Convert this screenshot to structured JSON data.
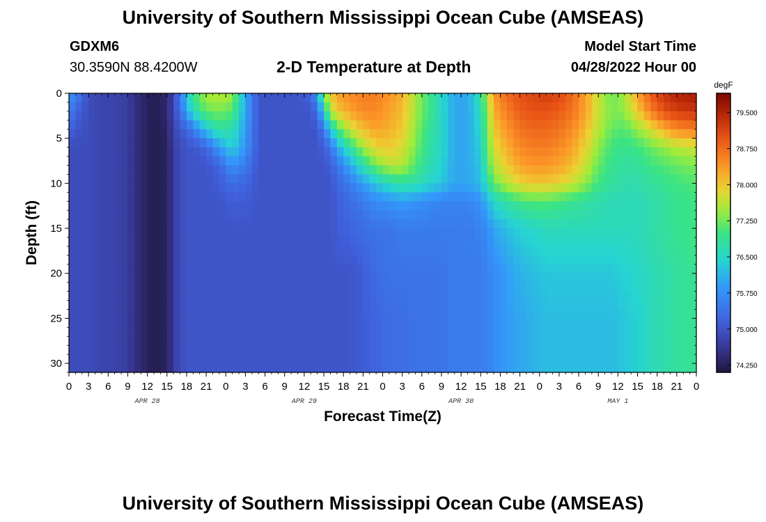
{
  "page_title": "University of Southern Mississippi Ocean Cube (AMSEAS)",
  "footer_title": "University of Southern Mississippi Ocean Cube (AMSEAS)",
  "station": {
    "id": "GDXM6",
    "coords": "30.3590N  88.4200W"
  },
  "subtitle": "2-D Temperature at Depth",
  "model_start": {
    "label": "Model Start Time",
    "value": "04/28/2022 Hour 00"
  },
  "chart_data": {
    "type": "heatmap",
    "title": "2-D Temperature at Depth",
    "xlabel": "Forecast Time(Z)",
    "ylabel": "Depth (ft)",
    "x_unit": "hours from model start",
    "xlim": [
      0,
      96
    ],
    "ylim": [
      0,
      31
    ],
    "x_ticks": [
      0,
      3,
      6,
      9,
      12,
      15,
      18,
      21,
      24,
      27,
      30,
      33,
      36,
      39,
      42,
      45,
      48,
      51,
      54,
      57,
      60,
      63,
      66,
      69,
      72,
      75,
      78,
      81,
      84,
      87,
      90,
      93,
      96
    ],
    "x_tick_labels": [
      "0",
      "3",
      "6",
      "9",
      "12",
      "15",
      "18",
      "21",
      "0",
      "3",
      "6",
      "9",
      "12",
      "15",
      "18",
      "21",
      "0",
      "3",
      "6",
      "9",
      "12",
      "15",
      "18",
      "21",
      "0",
      "3",
      "6",
      "9",
      "12",
      "15",
      "18",
      "21",
      "0"
    ],
    "date_labels": [
      {
        "text": "APR 28",
        "hour": 12
      },
      {
        "text": "APR 29",
        "hour": 36
      },
      {
        "text": "APR 30",
        "hour": 60
      },
      {
        "text": "MAY 1",
        "hour": 84
      }
    ],
    "y_ticks": [
      0,
      5,
      10,
      15,
      20,
      25,
      30
    ],
    "colorbar": {
      "unit": "degF",
      "min": 74.1,
      "max": 79.9,
      "ticks": [
        "74.250",
        "75.000",
        "75.750",
        "76.500",
        "77.250",
        "78.000",
        "78.750",
        "79.500"
      ],
      "tick_values": [
        74.25,
        75.0,
        75.75,
        76.5,
        77.25,
        78.0,
        78.75,
        79.5
      ]
    },
    "depths_ft": [
      0,
      2,
      4,
      6,
      8,
      10,
      12,
      15,
      20,
      25,
      31
    ],
    "time_hours": [
      0,
      1,
      3,
      5,
      7,
      9,
      11,
      12,
      13,
      15,
      16,
      17,
      18,
      19,
      21,
      23,
      25,
      27,
      29,
      31,
      33,
      35,
      37,
      38,
      39,
      40,
      41,
      43,
      45,
      47,
      49,
      51,
      53,
      55,
      57,
      59,
      61,
      63,
      64,
      65,
      67,
      69,
      71,
      73,
      75,
      77,
      79,
      81,
      83,
      85,
      87,
      89,
      91,
      93,
      96
    ],
    "temperature_degF": [
      [
        75.9,
        75.6,
        74.9,
        74.8,
        74.8,
        74.7,
        74.4,
        74.3,
        74.2,
        74.4,
        74.8,
        75.5,
        76.3,
        77.0,
        77.5,
        77.6,
        77.5,
        76.0,
        75.0,
        75.0,
        75.0,
        75.0,
        75.2,
        76.0,
        77.3,
        78.0,
        78.3,
        78.5,
        78.6,
        78.6,
        78.4,
        78.2,
        77.5,
        77.0,
        76.5,
        76.0,
        76.0,
        76.8,
        77.6,
        78.4,
        78.8,
        79.0,
        79.1,
        79.2,
        79.1,
        78.8,
        78.3,
        77.7,
        77.2,
        77.5,
        78.3,
        78.9,
        79.3,
        79.5,
        79.6
      ],
      [
        75.6,
        75.2,
        74.9,
        74.8,
        74.8,
        74.7,
        74.4,
        74.3,
        74.2,
        74.4,
        74.9,
        75.3,
        76.0,
        76.6,
        77.2,
        77.3,
        77.1,
        76.0,
        75.0,
        75.0,
        75.0,
        75.0,
        75.0,
        75.3,
        76.5,
        77.5,
        78.0,
        78.3,
        78.5,
        78.5,
        78.3,
        78.1,
        77.5,
        77.0,
        76.5,
        76.0,
        76.0,
        76.6,
        77.4,
        78.2,
        78.6,
        78.9,
        79.0,
        79.0,
        78.9,
        78.7,
        78.3,
        77.7,
        77.3,
        77.4,
        78.0,
        78.6,
        79.0,
        79.2,
        79.3
      ],
      [
        75.2,
        75.0,
        74.9,
        74.8,
        74.8,
        74.7,
        74.4,
        74.3,
        74.2,
        74.3,
        74.8,
        75.0,
        75.2,
        75.5,
        76.3,
        76.8,
        76.7,
        75.9,
        75.0,
        75.0,
        75.0,
        75.0,
        75.0,
        75.0,
        75.5,
        76.3,
        77.0,
        77.7,
        78.1,
        78.3,
        78.2,
        78.0,
        77.4,
        76.9,
        76.5,
        76.0,
        76.0,
        76.5,
        77.3,
        78.0,
        78.4,
        78.7,
        78.8,
        78.8,
        78.7,
        78.5,
        78.1,
        77.6,
        77.2,
        77.1,
        77.4,
        77.8,
        78.2,
        78.5,
        78.6
      ],
      [
        74.9,
        74.9,
        74.9,
        74.8,
        74.8,
        74.7,
        74.4,
        74.3,
        74.2,
        74.3,
        74.7,
        74.9,
        75.0,
        75.0,
        75.2,
        75.9,
        76.4,
        75.8,
        75.0,
        75.0,
        75.0,
        75.0,
        75.0,
        75.0,
        75.1,
        75.4,
        76.0,
        76.8,
        77.5,
        77.9,
        78.0,
        77.8,
        77.3,
        76.8,
        76.5,
        76.0,
        76.0,
        76.4,
        77.1,
        77.8,
        78.2,
        78.5,
        78.6,
        78.6,
        78.5,
        78.3,
        77.9,
        77.4,
        77.0,
        76.9,
        77.0,
        77.2,
        77.4,
        77.6,
        77.7
      ],
      [
        74.9,
        74.9,
        74.9,
        74.8,
        74.8,
        74.7,
        74.4,
        74.3,
        74.2,
        74.3,
        74.7,
        74.9,
        75.0,
        75.0,
        75.0,
        75.2,
        75.8,
        75.5,
        75.0,
        75.0,
        75.0,
        75.0,
        75.0,
        75.0,
        75.0,
        75.1,
        75.4,
        76.0,
        76.7,
        77.3,
        77.6,
        77.6,
        77.1,
        76.7,
        76.4,
        76.0,
        76.0,
        76.3,
        77.0,
        77.6,
        78.0,
        78.3,
        78.4,
        78.4,
        78.3,
        78.1,
        77.7,
        77.2,
        76.9,
        76.8,
        76.8,
        77.0,
        77.1,
        77.2,
        77.3
      ],
      [
        74.9,
        74.9,
        74.9,
        74.8,
        74.8,
        74.7,
        74.4,
        74.3,
        74.2,
        74.3,
        74.7,
        74.9,
        75.0,
        75.0,
        75.0,
        75.1,
        75.3,
        75.2,
        75.0,
        75.0,
        75.0,
        75.0,
        75.0,
        75.0,
        75.0,
        75.0,
        75.2,
        75.5,
        75.9,
        76.3,
        76.6,
        76.8,
        76.7,
        76.5,
        76.3,
        76.0,
        76.0,
        76.2,
        76.7,
        77.2,
        77.6,
        77.9,
        78.0,
        78.0,
        77.9,
        77.7,
        77.4,
        77.0,
        76.8,
        76.7,
        76.7,
        76.8,
        76.9,
        77.0,
        77.1
      ],
      [
        74.9,
        74.9,
        74.9,
        74.8,
        74.8,
        74.7,
        74.4,
        74.3,
        74.2,
        74.3,
        74.7,
        74.9,
        75.0,
        75.0,
        75.0,
        75.0,
        75.1,
        75.1,
        75.0,
        75.0,
        75.0,
        75.0,
        75.0,
        75.0,
        75.0,
        75.0,
        75.1,
        75.3,
        75.5,
        75.7,
        75.8,
        75.9,
        75.8,
        75.7,
        75.6,
        75.6,
        75.6,
        75.8,
        76.1,
        76.5,
        76.8,
        77.0,
        77.1,
        77.1,
        77.0,
        76.9,
        76.8,
        76.7,
        76.6,
        76.6,
        76.6,
        76.7,
        76.8,
        76.9,
        77.0
      ],
      [
        74.9,
        74.9,
        74.9,
        74.8,
        74.8,
        74.7,
        74.4,
        74.3,
        74.2,
        74.3,
        74.7,
        74.9,
        75.0,
        75.0,
        75.0,
        75.0,
        75.0,
        75.0,
        75.0,
        75.0,
        75.0,
        75.0,
        75.0,
        75.0,
        75.0,
        75.0,
        75.1,
        75.2,
        75.3,
        75.4,
        75.4,
        75.5,
        75.5,
        75.5,
        75.5,
        75.5,
        75.5,
        75.6,
        75.7,
        76.0,
        76.2,
        76.4,
        76.5,
        76.6,
        76.6,
        76.6,
        76.6,
        76.6,
        76.6,
        76.6,
        76.6,
        76.7,
        76.8,
        76.9,
        77.0
      ],
      [
        74.9,
        74.9,
        74.9,
        74.8,
        74.8,
        74.7,
        74.4,
        74.3,
        74.2,
        74.3,
        74.7,
        74.9,
        75.0,
        75.0,
        75.0,
        75.0,
        75.0,
        75.0,
        75.0,
        75.0,
        75.0,
        75.0,
        75.0,
        75.0,
        75.0,
        75.0,
        75.0,
        75.0,
        75.1,
        75.3,
        75.4,
        75.4,
        75.4,
        75.4,
        75.4,
        75.5,
        75.5,
        75.5,
        75.6,
        75.7,
        75.9,
        76.1,
        76.2,
        76.3,
        76.3,
        76.3,
        76.3,
        76.3,
        76.3,
        76.4,
        76.5,
        76.6,
        76.7,
        76.8,
        76.9
      ],
      [
        74.9,
        74.9,
        74.9,
        74.8,
        74.8,
        74.7,
        74.4,
        74.3,
        74.2,
        74.3,
        74.7,
        74.9,
        75.0,
        75.0,
        75.0,
        75.0,
        75.0,
        75.0,
        75.0,
        75.0,
        75.0,
        75.0,
        75.0,
        75.0,
        75.0,
        75.0,
        75.0,
        75.0,
        75.1,
        75.2,
        75.3,
        75.3,
        75.4,
        75.4,
        75.4,
        75.5,
        75.5,
        75.5,
        75.6,
        75.7,
        75.9,
        76.0,
        76.1,
        76.2,
        76.2,
        76.2,
        76.2,
        76.2,
        76.2,
        76.3,
        76.4,
        76.6,
        76.7,
        76.8,
        76.9
      ],
      [
        74.9,
        74.9,
        74.9,
        74.8,
        74.8,
        74.7,
        74.4,
        74.3,
        74.2,
        74.3,
        74.7,
        74.9,
        75.0,
        75.0,
        75.0,
        75.0,
        75.0,
        75.0,
        75.0,
        75.0,
        75.0,
        75.0,
        75.0,
        75.0,
        75.0,
        75.0,
        75.0,
        75.0,
        75.1,
        75.2,
        75.3,
        75.3,
        75.4,
        75.4,
        75.4,
        75.5,
        75.5,
        75.5,
        75.6,
        75.7,
        75.9,
        76.0,
        76.1,
        76.2,
        76.2,
        76.2,
        76.2,
        76.2,
        76.2,
        76.3,
        76.4,
        76.6,
        76.7,
        76.8,
        76.9
      ]
    ]
  }
}
